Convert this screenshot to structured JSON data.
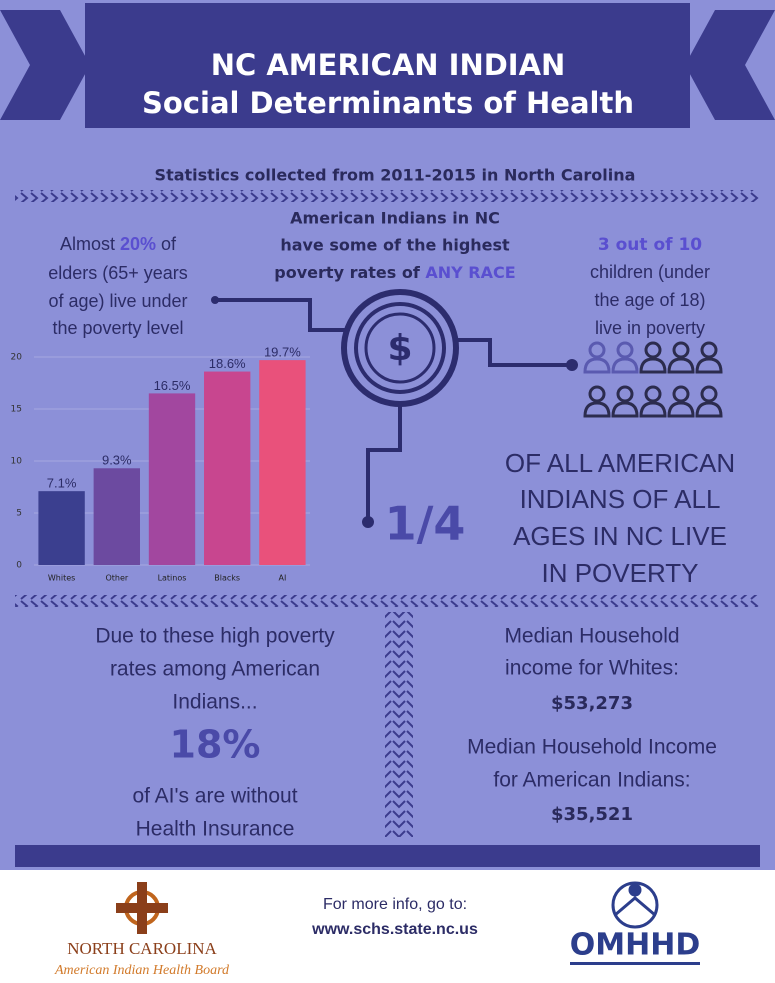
{
  "header": {
    "title_line1": "NC AMERICAN INDIAN",
    "title_line2": "Social Determinants of Health"
  },
  "subtitle": "Statistics collected from 2011-2015 in North Carolina",
  "center": {
    "line1": "American Indians in NC",
    "line2": "have some of the highest",
    "line3": "poverty rates of ",
    "highlight": "ANY RACE",
    "dollar_symbol": "$"
  },
  "elders": {
    "pre": "Almost ",
    "highlight": "20%",
    "post": " of",
    "line2": "elders (65+ years",
    "line3": "of age) live under",
    "line4": "the poverty level"
  },
  "children": {
    "highlight": "3 out of 10",
    "line2": "children (under",
    "line3": "the age of 18)",
    "line4": "live in poverty"
  },
  "quarter": {
    "fraction": "1/4",
    "line1": "OF ALL AMERICAN",
    "line2": "INDIANS OF ALL",
    "line3": "AGES IN NC LIVE",
    "line4": "IN POVERTY"
  },
  "insurance": {
    "line1": "Due to these high poverty",
    "line2": "rates among American",
    "line3": "Indians...",
    "highlight": "18%",
    "line4": "of AI's are without",
    "line5": "Health Insurance"
  },
  "income": {
    "line1": "Median Household",
    "line2": "income for Whites:",
    "whites": "$53,273",
    "line3": "Median Household Income",
    "line4": "for American Indians:",
    "ai": "$35,521"
  },
  "footer": {
    "info": "For more info, go to:",
    "url": "www.schs.state.nc.us",
    "left_logo_line1": "NORTH CAROLINA",
    "left_logo_line2": "American Indian Health Board",
    "right_logo": "OMHHD"
  },
  "chart_data": {
    "type": "bar",
    "categories": [
      "Whites",
      "Other",
      "Latinos",
      "Blacks",
      "AI"
    ],
    "values": [
      7.1,
      9.3,
      16.5,
      18.6,
      19.7
    ],
    "value_labels": [
      "7.1%",
      "9.3%",
      "16.5%",
      "18.6%",
      "19.7%"
    ],
    "colors": [
      "#3b3f8f",
      "#6c4aa0",
      "#a2479f",
      "#c8468f",
      "#e9517b"
    ],
    "ylim": [
      0,
      20
    ],
    "yticks": [
      0,
      5,
      10,
      15,
      20
    ],
    "grid": true
  }
}
